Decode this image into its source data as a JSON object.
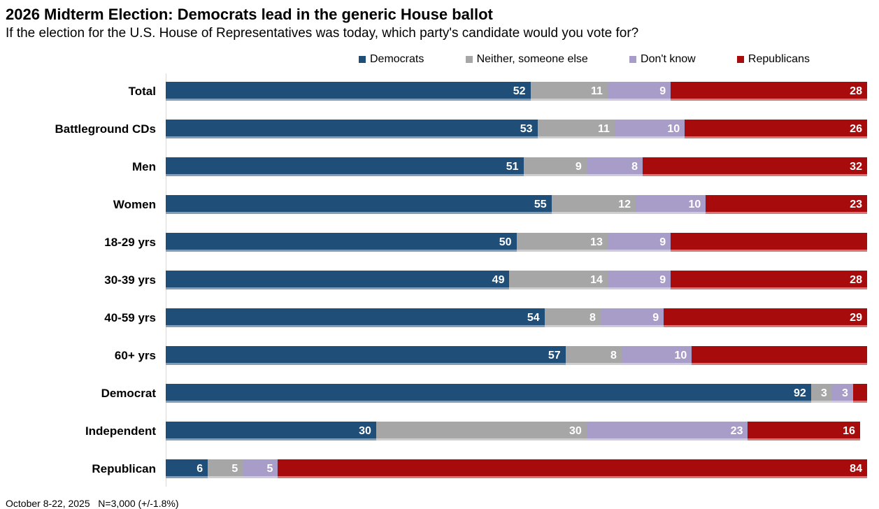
{
  "header": {
    "title": "2026 Midterm Election: Democrats lead in the generic House ballot",
    "subtitle": "If the election for the U.S. House of Representatives was today, which party's candidate would you vote for?"
  },
  "legend": {
    "items": [
      {
        "label": "Democrats",
        "color": "#1F4E79"
      },
      {
        "label": "Neither, someone else",
        "color": "#A6A6A6"
      },
      {
        "label": "Don't know",
        "color": "#A89CC9"
      },
      {
        "label": "Republicans",
        "color": "#A80B0B"
      }
    ]
  },
  "chart_data": {
    "type": "bar",
    "variant": "horizontal-stacked",
    "title": "2026 Midterm Election: Democrats lead in the generic House ballot",
    "subtitle": "If the election for the U.S. House of Representatives was today, which party's candidate would you vote for?",
    "xlim": [
      0,
      100
    ],
    "grid": false,
    "legend_position": "top",
    "axis_line_color": "#D9D9D9",
    "value_label_color": "#FFFFFF",
    "categories": [
      "Total",
      "Battleground CDs",
      "Men",
      "Women",
      "18-29 yrs",
      "30-39 yrs",
      "40-59 yrs",
      "60+ yrs",
      "Democrat",
      "Independent",
      "Republican"
    ],
    "series": [
      {
        "name": "Democrats",
        "color": "#1F4E79",
        "values": [
          52,
          53,
          51,
          55,
          50,
          49,
          54,
          57,
          92,
          30,
          6
        ],
        "data_labels": [
          "52",
          "53",
          "51",
          "55",
          "50",
          "49",
          "54",
          "57",
          "92",
          "30",
          "6"
        ]
      },
      {
        "name": "Neither, someone else",
        "color": "#A6A6A6",
        "values": [
          11,
          11,
          9,
          12,
          13,
          14,
          8,
          8,
          3,
          30,
          5
        ],
        "data_labels": [
          "11",
          "11",
          "9",
          "12",
          "13",
          "14",
          "8",
          "8",
          "3",
          "30",
          "5"
        ]
      },
      {
        "name": "Don't know",
        "color": "#A89CC9",
        "values": [
          9,
          10,
          8,
          10,
          9,
          9,
          9,
          10,
          3,
          23,
          5
        ],
        "data_labels": [
          "9",
          "10",
          "8",
          "10",
          "9",
          "9",
          "9",
          "10",
          "3",
          "23",
          "5"
        ]
      },
      {
        "name": "Republicans",
        "color": "#A80B0B",
        "values": [
          28,
          26,
          32,
          23,
          28,
          28,
          29,
          25,
          2,
          16,
          84
        ],
        "data_labels": [
          "28",
          "26",
          "32",
          "23",
          "",
          "28",
          "29",
          "",
          "",
          "16",
          "84"
        ]
      }
    ]
  },
  "footnote": {
    "text": "October 8-22, 2025   N=3,000 (+/-1.8%)"
  }
}
